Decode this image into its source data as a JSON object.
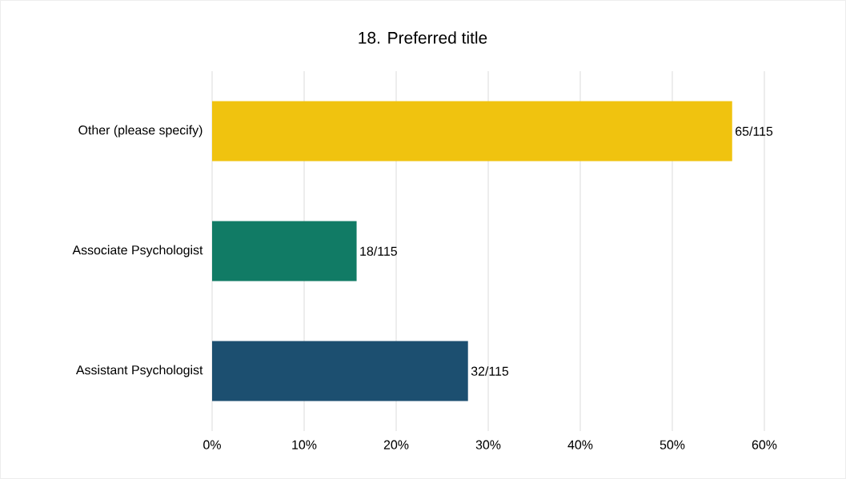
{
  "chart_data": {
    "type": "bar",
    "orientation": "horizontal",
    "title": "18. Preferred title",
    "categories": [
      "Other (please specify)",
      "Associate Psychologist",
      "Assistant Psychologist"
    ],
    "values": [
      56.5,
      15.7,
      27.8
    ],
    "value_labels": [
      "65/115",
      "18/115",
      "32/115"
    ],
    "colors": [
      "#f0c30f",
      "#117b65",
      "#1c4f70"
    ],
    "xlim": [
      0,
      60
    ],
    "xticks": [
      {
        "value": 0,
        "label": "0%"
      },
      {
        "value": 10,
        "label": "10%"
      },
      {
        "value": 20,
        "label": "20%"
      },
      {
        "value": 30,
        "label": "30%"
      },
      {
        "value": 40,
        "label": "40%"
      },
      {
        "value": 50,
        "label": "50%"
      },
      {
        "value": 60,
        "label": "60%"
      }
    ],
    "grid": "x"
  }
}
